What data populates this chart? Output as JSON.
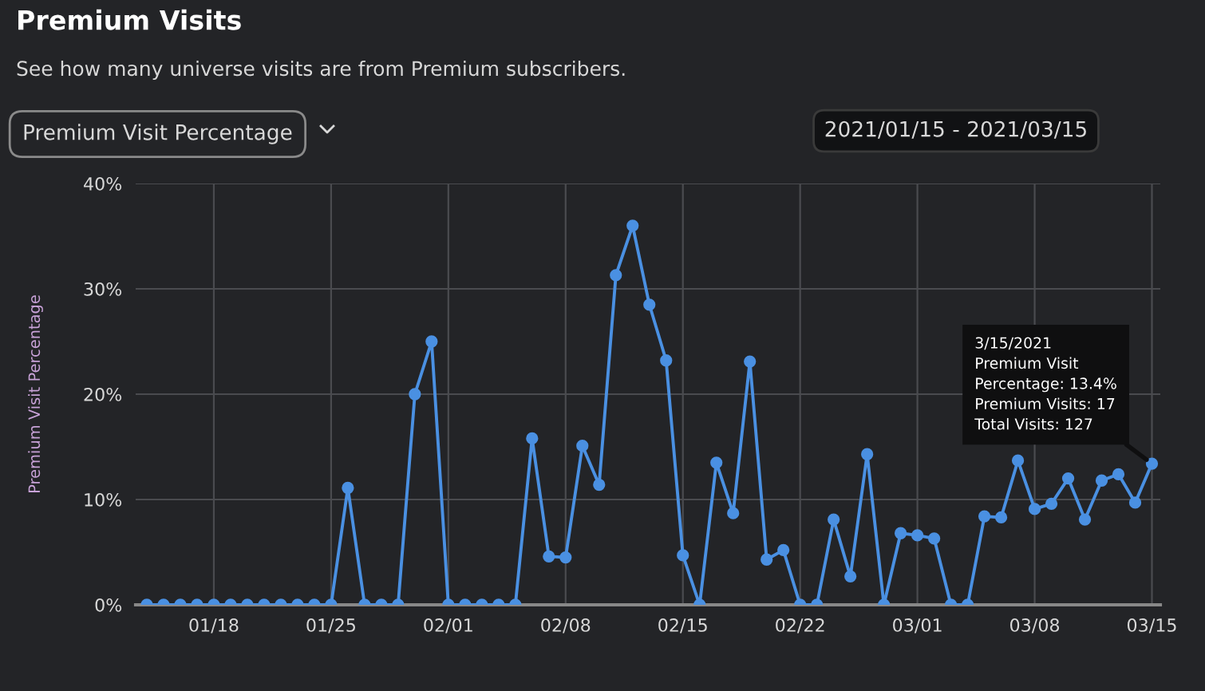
{
  "chart_data": {
    "type": "line",
    "title": "Premium Visits",
    "subtitle": "See how many universe visits are from Premium subscribers.",
    "ylabel": "Premium Visit Percentage",
    "annotations": [
      "Premium Visit Percentage",
      "2021/01/15 - 2021/03/15",
      {
        "text": "3/15/2021\nPremium Visit\nPercentage: 13.4%\nPremium Visits: 17\nTotal Visits: 127",
        "x": "2021-03-15",
        "y": 13.4
      }
    ],
    "x": [
      "2021-01-14",
      "2021-01-15",
      "2021-01-16",
      "2021-01-17",
      "2021-01-18",
      "2021-01-19",
      "2021-01-20",
      "2021-01-21",
      "2021-01-22",
      "2021-01-23",
      "2021-01-24",
      "2021-01-25",
      "2021-01-26",
      "2021-01-27",
      "2021-01-28",
      "2021-01-29",
      "2021-01-30",
      "2021-01-31",
      "2021-02-01",
      "2021-02-02",
      "2021-02-03",
      "2021-02-04",
      "2021-02-05",
      "2021-02-06",
      "2021-02-07",
      "2021-02-08",
      "2021-02-09",
      "2021-02-10",
      "2021-02-11",
      "2021-02-12",
      "2021-02-13",
      "2021-02-14",
      "2021-02-15",
      "2021-02-16",
      "2021-02-17",
      "2021-02-18",
      "2021-02-19",
      "2021-02-20",
      "2021-02-21",
      "2021-02-22",
      "2021-02-23",
      "2021-02-24",
      "2021-02-25",
      "2021-02-26",
      "2021-02-27",
      "2021-02-28",
      "2021-03-01",
      "2021-03-02",
      "2021-03-03",
      "2021-03-04",
      "2021-03-05",
      "2021-03-06",
      "2021-03-07",
      "2021-03-08",
      "2021-03-09",
      "2021-03-10",
      "2021-03-11",
      "2021-03-12",
      "2021-03-13",
      "2021-03-14",
      "2021-03-15"
    ],
    "series": [
      {
        "color": "#4a90e2",
        "values": [
          0,
          0,
          0,
          0,
          0,
          0,
          0,
          0,
          0,
          0,
          0,
          0,
          11.1,
          0,
          0,
          0,
          20,
          25,
          0,
          0,
          0,
          0,
          0,
          15.8,
          4.6,
          4.5,
          15.1,
          11.4,
          31.3,
          36.0,
          28.5,
          23.2,
          4.7,
          0,
          13.5,
          8.7,
          23.1,
          4.3,
          5.2,
          0,
          0,
          8.1,
          2.7,
          14.3,
          0,
          6.8,
          6.6,
          6.3,
          0,
          0,
          8.4,
          8.3,
          13.7,
          9.1,
          9.6,
          12.0,
          8.1,
          11.8,
          12.4,
          9.7,
          13.4
        ]
      }
    ],
    "xlim": [
      "2021-01-13T08:00",
      "2021-03-15T12:00"
    ],
    "xticks": [
      {
        "value": "2021-01-18",
        "label": "01/18"
      },
      {
        "value": "2021-01-25",
        "label": "01/25"
      },
      {
        "value": "2021-02-01",
        "label": "02/01"
      },
      {
        "value": "2021-02-08",
        "label": "02/08"
      },
      {
        "value": "2021-02-15",
        "label": "02/15"
      },
      {
        "value": "2021-02-22",
        "label": "02/22"
      },
      {
        "value": "2021-03-01",
        "label": "03/01"
      },
      {
        "value": "2021-03-08",
        "label": "03/08"
      },
      {
        "value": "2021-03-15",
        "label": "03/15"
      }
    ],
    "ylim": [
      0,
      40
    ],
    "yticks": [
      {
        "value": 0,
        "label": "0%"
      },
      {
        "value": 10,
        "label": "10%"
      },
      {
        "value": 20,
        "label": "20%"
      },
      {
        "value": 30,
        "label": "30%"
      },
      {
        "value": 40,
        "label": "40%"
      }
    ],
    "grid": true,
    "marker": "circle",
    "line_style": "solid",
    "legend": false
  }
}
